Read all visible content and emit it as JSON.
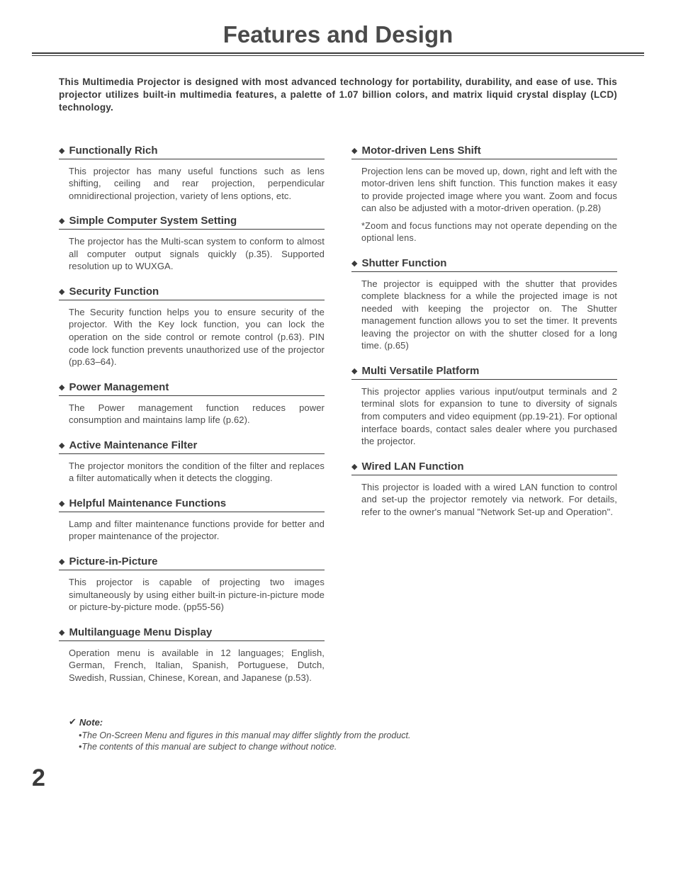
{
  "title": "Features and Design",
  "intro": "This Multimedia Projector is designed with most advanced technology for portability, durability, and ease of use. This projector utilizes built-in multimedia features, a palette of 1.07 billion colors, and matrix liquid crystal display (LCD) technology.",
  "left": [
    {
      "title": "Functionally Rich",
      "body": "This projector has many useful functions such as lens shifting, ceiling and rear projection, perpendicular omnidirectional projection, variety of lens options, etc."
    },
    {
      "title": "Simple Computer System Setting",
      "body": "The projector has the Multi-scan system to conform to almost all computer output signals quickly (p.35). Supported resolution up to WUXGA."
    },
    {
      "title": "Security Function",
      "body": "The Security function helps you to ensure security of the projector. With the Key lock function, you can lock the operation on the side control or remote control (p.63). PIN code lock function prevents unauthorized use of the projector (pp.63–64)."
    },
    {
      "title": "Power Management",
      "body": "The Power management function reduces power consumption and maintains lamp life (p.62)."
    },
    {
      "title": "Active Maintenance Filter",
      "body": "The projector monitors the condition of the filter and replaces a filter automatically when it detects the clogging."
    },
    {
      "title": "Helpful Maintenance Functions",
      "body": "Lamp and filter maintenance functions provide for better and proper maintenance of the projector."
    },
    {
      "title": "Picture-in-Picture",
      "body": "This projector is capable of projecting two images simultaneously by using either built-in picture-in-picture mode or picture-by-picture mode. (pp55-56)"
    },
    {
      "title": "Multilanguage Menu Display",
      "body": "Operation menu is available in 12 languages; English, German, French, Italian, Spanish, Portuguese, Dutch, Swedish, Russian, Chinese, Korean, and Japanese (p.53)."
    }
  ],
  "right": [
    {
      "title": "Motor-driven Lens Shift",
      "body": "Projection lens can be moved up, down, right and left with the motor-driven lens shift function. This function makes it easy to provide projected image where you want. Zoom and focus can also be adjusted with a motor-driven operation. (p.28)",
      "note": "*Zoom and focus functions may not operate depending on the optional lens."
    },
    {
      "title": "Shutter Function",
      "body": "The projector is equipped with the shutter that provides complete blackness for a while the projected image is not needed with keeping the projector on. The Shutter management function allows you to set the timer. It prevents leaving the projector on with the shutter closed for a long time. (p.65)"
    },
    {
      "title": "Multi Versatile Platform",
      "body": "This projector applies various input/output terminals and 2 terminal slots for expansion to tune to diversity of signals from computers and video equipment (pp.19-21). For optional interface boards, contact sales dealer where you purchased the projector."
    },
    {
      "title": "Wired LAN Function",
      "body": "This projector is loaded with a wired LAN function to control and set-up the projector remotely via network. For details, refer to the owner's manual \"Network Set-up and Operation\"."
    }
  ],
  "footer": {
    "label": "Note:",
    "items": [
      "•The On-Screen Menu and figures in this manual may differ slightly from the product.",
      "•The contents of this manual are subject to change without notice."
    ]
  },
  "page_number": "2"
}
